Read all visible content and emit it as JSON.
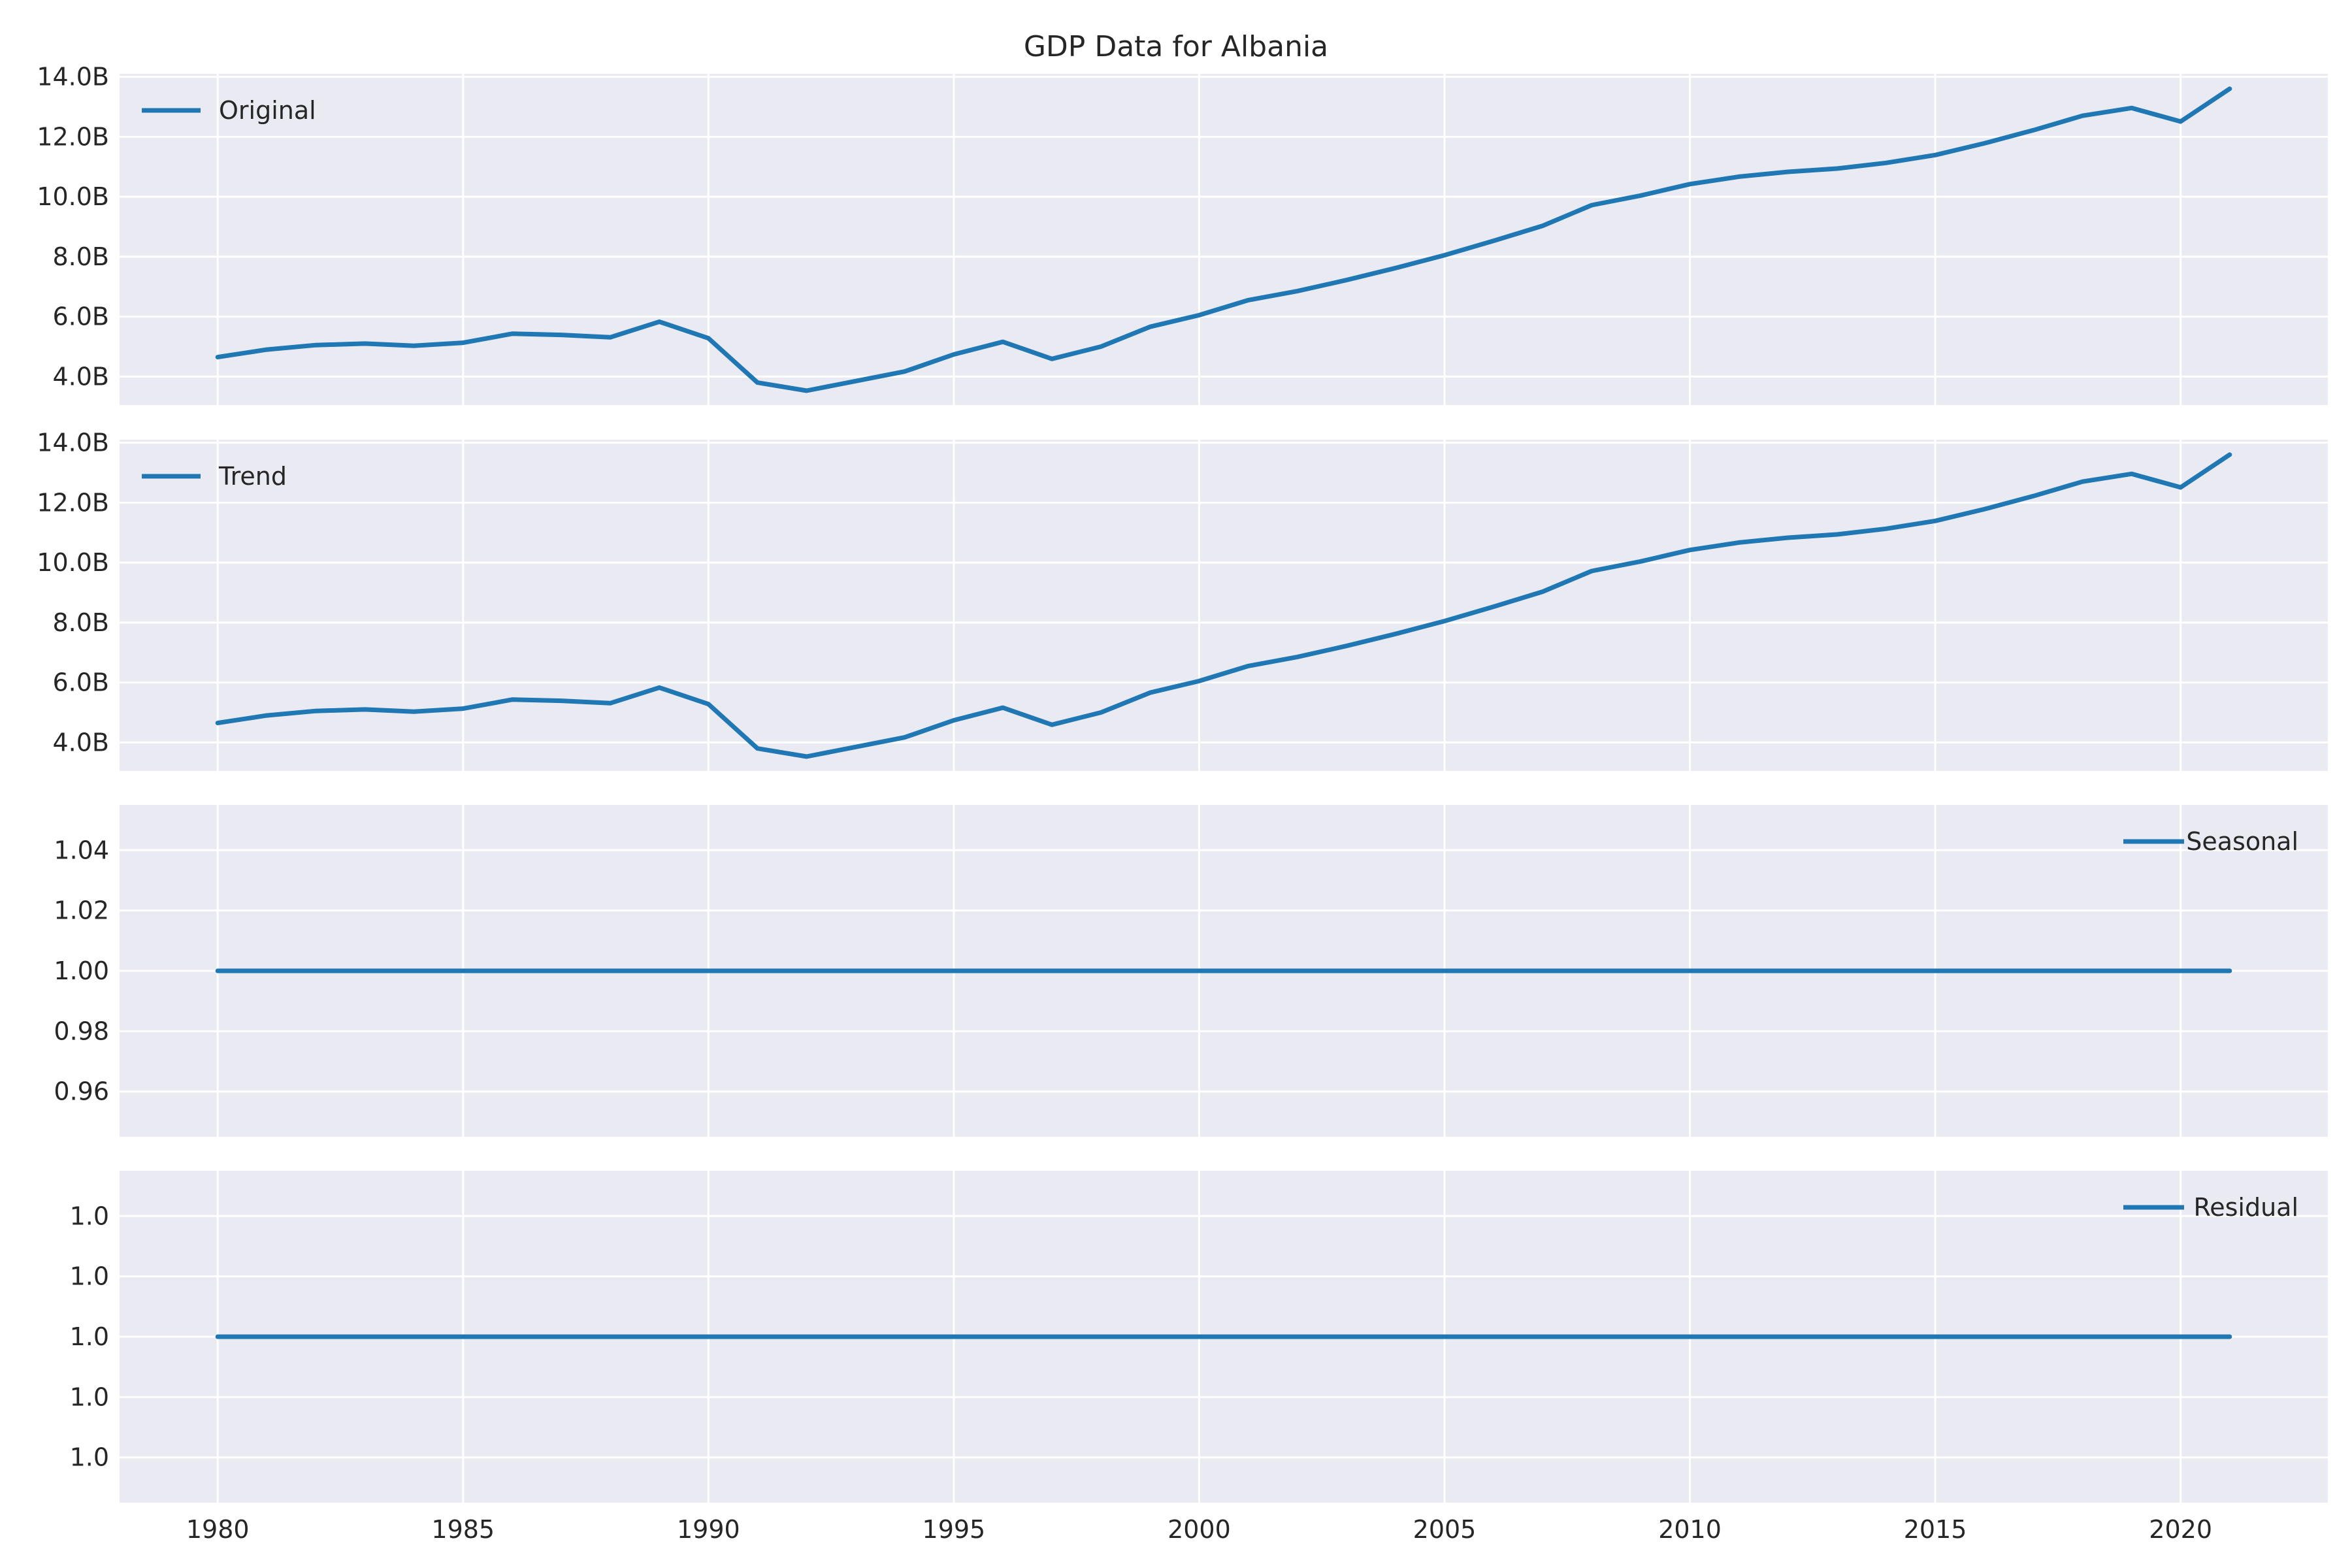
{
  "chart_data": {
    "type": "line",
    "title": "GDP Data for Albania",
    "colors": {
      "line": "#1f77b4",
      "panel": "#eaeaf2",
      "grid": "#ffffff"
    },
    "x": [
      1980,
      1981,
      1982,
      1983,
      1984,
      1985,
      1986,
      1987,
      1988,
      1989,
      1990,
      1991,
      1992,
      1993,
      1994,
      1995,
      1996,
      1997,
      1998,
      1999,
      2000,
      2001,
      2002,
      2003,
      2004,
      2005,
      2006,
      2007,
      2008,
      2009,
      2010,
      2011,
      2012,
      2013,
      2014,
      2015,
      2016,
      2017,
      2018,
      2019,
      2020,
      2021
    ],
    "xlim": [
      1978,
      2023
    ],
    "xticks": [
      1980,
      1985,
      1990,
      1995,
      2000,
      2005,
      2010,
      2015,
      2020
    ],
    "xtick_labels": [
      "1980",
      "1985",
      "1990",
      "1995",
      "2000",
      "2005",
      "2010",
      "2015",
      "2020"
    ],
    "panels": [
      {
        "name": "Original",
        "legend_position": "upper left",
        "ylim": [
          3.05,
          14.1
        ],
        "yticks": [
          4,
          6,
          8,
          10,
          12,
          14
        ],
        "ytick_labels": [
          "4.0B",
          "6.0B",
          "8.0B",
          "10.0B",
          "12.0B",
          "14.0B"
        ],
        "values": [
          4.65,
          4.9,
          5.05,
          5.1,
          5.03,
          5.13,
          5.43,
          5.39,
          5.31,
          5.83,
          5.28,
          3.8,
          3.53,
          3.85,
          4.17,
          4.74,
          5.16,
          4.59,
          5.0,
          5.66,
          6.05,
          6.55,
          6.85,
          7.22,
          7.62,
          8.05,
          8.53,
          9.03,
          9.72,
          10.04,
          10.42,
          10.67,
          10.83,
          10.94,
          11.13,
          11.39,
          11.78,
          12.22,
          12.7,
          12.96,
          12.51,
          13.6
        ]
      },
      {
        "name": "Trend",
        "legend_position": "upper left",
        "ylim": [
          3.05,
          14.1
        ],
        "yticks": [
          4,
          6,
          8,
          10,
          12,
          14
        ],
        "ytick_labels": [
          "4.0B",
          "6.0B",
          "8.0B",
          "10.0B",
          "12.0B",
          "14.0B"
        ],
        "values": [
          4.65,
          4.9,
          5.05,
          5.1,
          5.03,
          5.13,
          5.43,
          5.39,
          5.31,
          5.83,
          5.28,
          3.8,
          3.53,
          3.85,
          4.17,
          4.74,
          5.16,
          4.59,
          5.0,
          5.66,
          6.05,
          6.55,
          6.85,
          7.22,
          7.62,
          8.05,
          8.53,
          9.03,
          9.72,
          10.04,
          10.42,
          10.67,
          10.83,
          10.94,
          11.13,
          11.39,
          11.78,
          12.22,
          12.7,
          12.96,
          12.51,
          13.6
        ]
      },
      {
        "name": "Seasonal",
        "legend_position": "upper right",
        "ylim": [
          0.945,
          1.055
        ],
        "yticks": [
          0.96,
          0.98,
          1.0,
          1.02,
          1.04
        ],
        "ytick_labels": [
          "0.96",
          "0.98",
          "1.00",
          "1.02",
          "1.04"
        ],
        "constant": 1.0
      },
      {
        "name": "Residual",
        "legend_position": "upper right",
        "ylim": [
          0.945,
          1.055
        ],
        "yticks": [
          0.96,
          0.98,
          1.0,
          1.02,
          1.04
        ],
        "ytick_labels": [
          "1.0",
          "1.0",
          "1.0",
          "1.0",
          "1.0"
        ],
        "constant": 1.0
      }
    ],
    "grid": true
  }
}
